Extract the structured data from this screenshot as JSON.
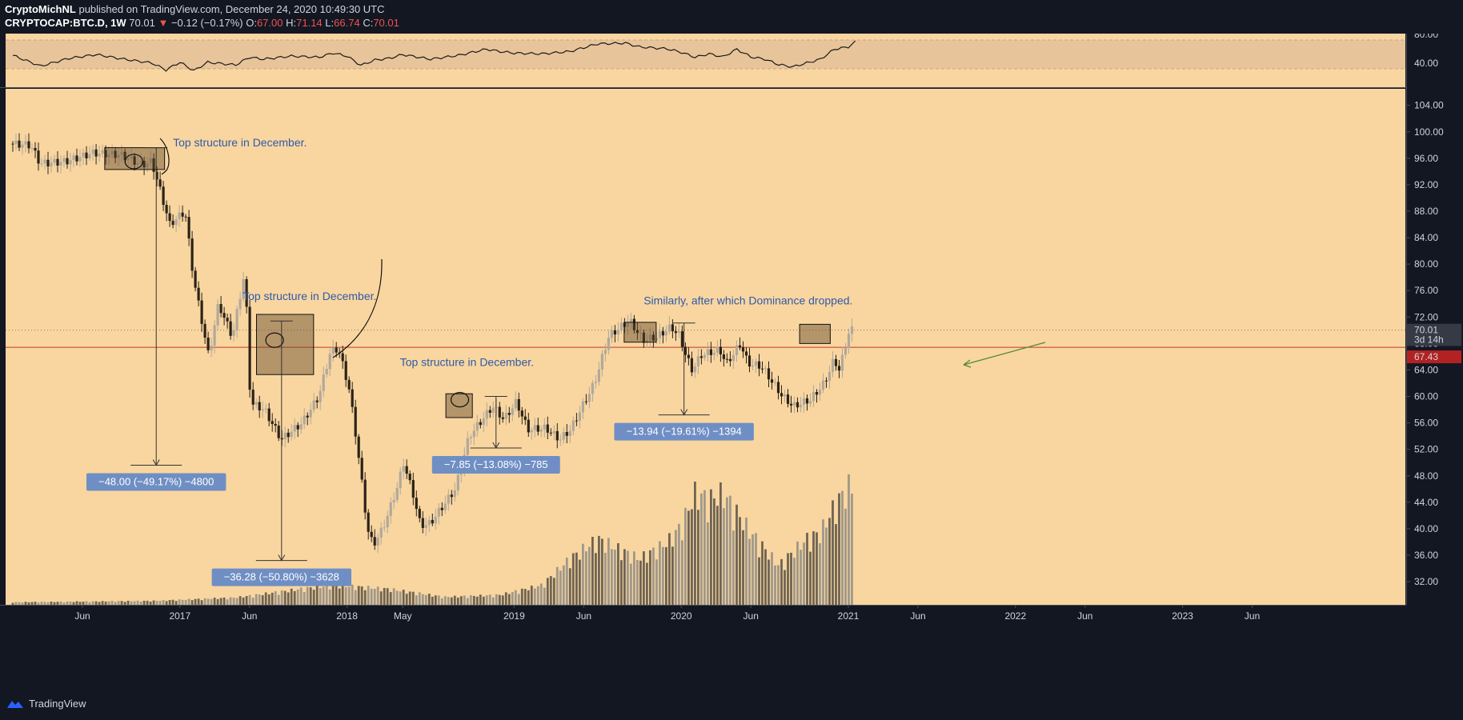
{
  "header": {
    "author": "CryptoMichNL",
    "published": "published on TradingView.com, December 24, 2020 10:49:30 UTC",
    "symbol": "CRYPTOCAP:BTC.D, 1W",
    "last": "70.01",
    "change_arrow": "▼",
    "change": "−0.12 (−0.17%)",
    "o_label": "O:",
    "o_value": "67.00",
    "h_label": "H:",
    "h_value": "71.14",
    "l_label": "L:",
    "l_value": "66.74",
    "c_label": "C:",
    "c_value": "70.01"
  },
  "footer": {
    "brand": "TradingView",
    "logo_icon": "tradingview-logo-icon"
  },
  "colors": {
    "background": "#131722",
    "panel": "#f9d6a0",
    "rsi_band": "#e8c49a",
    "bull_candle": "#b0a89c",
    "bear_candle": "#2a2218",
    "annotation_text": "#2f5aa8",
    "measure_box": "#6f8fc4",
    "support_line": "#c0392b",
    "price_label": "#363a45",
    "support_label": "#b22222"
  },
  "chart_data": {
    "type": "candlestick",
    "symbol": "CRYPTOCAP:BTC.D",
    "interval": "1W",
    "y_axis": {
      "min": 28.5,
      "max": 106.5,
      "ticks": [
        "104.00",
        "100.00",
        "96.00",
        "92.00",
        "88.00",
        "84.00",
        "80.00",
        "76.00",
        "72.00",
        "68.00",
        "64.00",
        "60.00",
        "56.00",
        "52.00",
        "48.00",
        "44.00",
        "40.00",
        "36.00",
        "32.00"
      ]
    },
    "rsi_axis": {
      "ticks": [
        "80.00",
        "40.00"
      ]
    },
    "x_axis": {
      "labels": [
        "Jun",
        "2017",
        "Jun",
        "2018",
        "May",
        "2019",
        "Jun",
        "2020",
        "Jun",
        "2021",
        "Jun",
        "2022",
        "Jun",
        "2023",
        "Jun"
      ],
      "label_months": [
        5,
        12,
        17,
        24,
        28,
        36,
        41,
        48,
        53,
        60,
        65,
        72,
        77,
        84,
        89
      ]
    },
    "price_markers": {
      "last_price": "70.01",
      "countdown": "3d 14h",
      "support": "67.43"
    },
    "key_levels": [
      70.01,
      67.43
    ],
    "anchors": [
      [
        0,
        98.2
      ],
      [
        1.5,
        98.0
      ],
      [
        2.2,
        95.2
      ],
      [
        4,
        95.5
      ],
      [
        6,
        96.8
      ],
      [
        8,
        96.5
      ],
      [
        9.5,
        95.0
      ],
      [
        10.2,
        95.5
      ],
      [
        10.7,
        92
      ],
      [
        11.5,
        86
      ],
      [
        12.6,
        88
      ],
      [
        13.2,
        78
      ],
      [
        14.3,
        66
      ],
      [
        15,
        74
      ],
      [
        16,
        69
      ],
      [
        16.9,
        79
      ],
      [
        17.3,
        59
      ],
      [
        18.3,
        58
      ],
      [
        19.5,
        53.5
      ],
      [
        21,
        56
      ],
      [
        22.2,
        60
      ],
      [
        23,
        66.5
      ],
      [
        23.6,
        67.3
      ],
      [
        24.4,
        61
      ],
      [
        25,
        52
      ],
      [
        25.7,
        40
      ],
      [
        26.1,
        37.5
      ],
      [
        26.8,
        40
      ],
      [
        27.8,
        46
      ],
      [
        28.3,
        50
      ],
      [
        29,
        45
      ],
      [
        29.5,
        40.5
      ],
      [
        30.2,
        40.8
      ],
      [
        32,
        46
      ],
      [
        33,
        54
      ],
      [
        34.7,
        58.5
      ],
      [
        35.5,
        56.5
      ],
      [
        36.4,
        59.2
      ],
      [
        37.2,
        55
      ],
      [
        38.5,
        55.2
      ],
      [
        39.5,
        53.5
      ],
      [
        40.3,
        55
      ],
      [
        41,
        58
      ],
      [
        42,
        62
      ],
      [
        43,
        69
      ],
      [
        44.5,
        71.5
      ],
      [
        45.5,
        68.5
      ],
      [
        46.5,
        69
      ],
      [
        47.5,
        70.5
      ],
      [
        48.1,
        69.2
      ],
      [
        48.6,
        66
      ],
      [
        49,
        64
      ],
      [
        49.7,
        66.3
      ],
      [
        51,
        67
      ],
      [
        51.5,
        65
      ],
      [
        52.5,
        68
      ],
      [
        53,
        65
      ],
      [
        54,
        64.5
      ],
      [
        55.5,
        60
      ],
      [
        56.3,
        58.5
      ],
      [
        57.5,
        59.5
      ],
      [
        58.5,
        62
      ],
      [
        59.2,
        65.5
      ],
      [
        59.6,
        64
      ],
      [
        60.3,
        70
      ]
    ],
    "volume_profile": [
      [
        0,
        0.4
      ],
      [
        10,
        0.6
      ],
      [
        16,
        1.1
      ],
      [
        21,
        2.5
      ],
      [
        23,
        3.0
      ],
      [
        27,
        2.4
      ],
      [
        31,
        1.2
      ],
      [
        35,
        1.5
      ],
      [
        38,
        3.0
      ],
      [
        40,
        7.0
      ],
      [
        42,
        10
      ],
      [
        43,
        9
      ],
      [
        45,
        7
      ],
      [
        47,
        9.5
      ],
      [
        48,
        12
      ],
      [
        49,
        17
      ],
      [
        50,
        16
      ],
      [
        51,
        17
      ],
      [
        53,
        11
      ],
      [
        55,
        6
      ],
      [
        57,
        10
      ],
      [
        58,
        11
      ],
      [
        59,
        15
      ],
      [
        60,
        18
      ]
    ],
    "rsi_anchors": [
      [
        0,
        0.6
      ],
      [
        2,
        0.32
      ],
      [
        4,
        0.52
      ],
      [
        6,
        0.62
      ],
      [
        8,
        0.5
      ],
      [
        10,
        0.4
      ],
      [
        11,
        0.22
      ],
      [
        12,
        0.42
      ],
      [
        13,
        0.2
      ],
      [
        14,
        0.42
      ],
      [
        16,
        0.35
      ],
      [
        17,
        0.55
      ],
      [
        18,
        0.5
      ],
      [
        20,
        0.58
      ],
      [
        22,
        0.55
      ],
      [
        23,
        0.66
      ],
      [
        24,
        0.58
      ],
      [
        25,
        0.34
      ],
      [
        26,
        0.48
      ],
      [
        27,
        0.52
      ],
      [
        28,
        0.62
      ],
      [
        30,
        0.5
      ],
      [
        32,
        0.6
      ],
      [
        34,
        0.76
      ],
      [
        35,
        0.7
      ],
      [
        36,
        0.66
      ],
      [
        38,
        0.64
      ],
      [
        40,
        0.7
      ],
      [
        42,
        0.9
      ],
      [
        44,
        0.92
      ],
      [
        45,
        0.82
      ],
      [
        47,
        0.77
      ],
      [
        48,
        0.68
      ],
      [
        49,
        0.55
      ],
      [
        50,
        0.64
      ],
      [
        51,
        0.56
      ],
      [
        52,
        0.76
      ],
      [
        53,
        0.56
      ],
      [
        54,
        0.5
      ],
      [
        55,
        0.36
      ],
      [
        56,
        0.3
      ],
      [
        57,
        0.4
      ],
      [
        58,
        0.5
      ],
      [
        59,
        0.76
      ],
      [
        60,
        0.82
      ],
      [
        60.5,
        0.95
      ]
    ],
    "annotations": [
      {
        "text": "Top structure in December.",
        "month": 11.5,
        "price": 97.8
      },
      {
        "text": "Top structure in December.",
        "month": 16.5,
        "price": 74.6
      },
      {
        "text": "Top structure in December.",
        "month": 27.8,
        "price": 64.6
      },
      {
        "text": "Similarly, after which Dominance dropped.",
        "month": 45.3,
        "price": 73.9
      }
    ],
    "structure_boxes": [
      {
        "m1": 6.6,
        "m2": 10.9,
        "p1": 94.3,
        "p2": 97.6
      },
      {
        "m1": 17.5,
        "m2": 21.6,
        "p1": 63.3,
        "p2": 72.4
      },
      {
        "m1": 31.1,
        "m2": 33.0,
        "p1": 56.8,
        "p2": 60.4
      },
      {
        "m1": 43.9,
        "m2": 46.2,
        "p1": 68.2,
        "p2": 71.2
      },
      {
        "m1": 56.5,
        "m2": 58.7,
        "p1": 68.0,
        "p2": 70.9
      }
    ],
    "measurements": [
      {
        "text": "−48.00 (−49.17%) −4800",
        "month": 10.3,
        "from": 97.6,
        "to": 49.6
      },
      {
        "text": "−36.28 (−50.80%) −3628",
        "month": 19.3,
        "from": 71.4,
        "to": 35.2
      },
      {
        "text": "−7.85 (−13.08%) −785",
        "month": 34.7,
        "from": 60.0,
        "to": 52.2
      },
      {
        "text": "−13.94 (−19.61%) −1394",
        "month": 48.2,
        "from": 71.1,
        "to": 57.2
      }
    ]
  }
}
